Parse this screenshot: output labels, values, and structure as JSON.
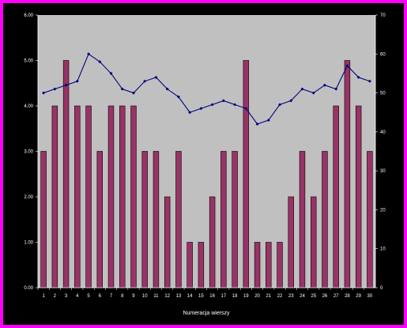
{
  "chart_data": {
    "type": "bar",
    "categories": [
      "1",
      "2",
      "3",
      "4",
      "5",
      "6",
      "7",
      "8",
      "9",
      "10",
      "11",
      "12",
      "13",
      "14",
      "15",
      "16",
      "17",
      "18",
      "19",
      "20",
      "21",
      "22",
      "23",
      "24",
      "25",
      "26",
      "27",
      "28",
      "29",
      "30"
    ],
    "series": [
      {
        "kind": "bar",
        "axis": "left",
        "values": [
          3,
          4,
          5,
          4,
          4,
          3,
          4,
          4,
          4,
          3,
          3,
          2,
          3,
          1,
          1,
          2,
          3,
          3,
          5,
          1,
          1,
          1,
          2,
          3,
          2,
          3,
          4,
          5,
          4,
          3
        ]
      },
      {
        "kind": "line",
        "axis": "right",
        "values": [
          50,
          51,
          52,
          53,
          60,
          58,
          55,
          51,
          50,
          53,
          54,
          51,
          49,
          45,
          46,
          47,
          48,
          47,
          46,
          42,
          43,
          47,
          48,
          51,
          50,
          52,
          51,
          57,
          54,
          53
        ]
      }
    ],
    "y_left": {
      "ylim": [
        0,
        6
      ],
      "ticks": [
        "0.00",
        "1.00",
        "2.00",
        "3.00",
        "4.00",
        "5.00",
        "6.00"
      ]
    },
    "y_right": {
      "ylim": [
        0,
        70
      ],
      "ticks": [
        "0",
        "10",
        "20",
        "30",
        "40",
        "50",
        "60",
        "70"
      ]
    },
    "xlabel": "Numeracja wierszy",
    "ylabel": "",
    "grid": false,
    "legend": "none",
    "colors": {
      "outer_border": "#ff00ff",
      "chart_area": "#000000",
      "plot_area": "#c0c0c0",
      "bar_fill": "#993366",
      "bar_stroke": "#000000",
      "line": "#000080",
      "text": "#ffffff"
    }
  }
}
